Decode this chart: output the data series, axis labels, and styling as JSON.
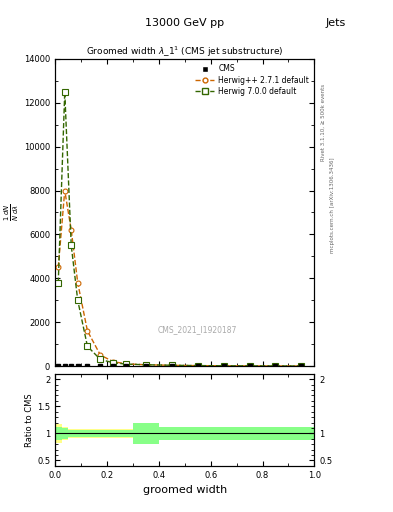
{
  "title": "13000 GeV pp",
  "title_right": "Jets",
  "plot_title": "Groomed width $\\lambda\\_1^1$ (CMS jet substructure)",
  "xlabel": "groomed width",
  "ylabel_ratio": "Ratio to CMS",
  "watermark": "CMS_2021_I1920187",
  "right_label_top": "Rivet 3.1.10, ≥ 500k events",
  "right_label_bot": "mcplots.cern.ch [arXiv:1306.3436]",
  "herwig271_x": [
    0.0125,
    0.0375,
    0.0625,
    0.0875,
    0.125,
    0.175,
    0.225,
    0.275,
    0.35,
    0.45,
    0.55,
    0.65,
    0.75,
    0.85,
    0.95
  ],
  "herwig271_y": [
    4500,
    8000,
    6200,
    3800,
    1600,
    500,
    200,
    100,
    60,
    35,
    20,
    12,
    8,
    5,
    3
  ],
  "herwig700_x": [
    0.0125,
    0.0375,
    0.0625,
    0.0875,
    0.125,
    0.175,
    0.225,
    0.275,
    0.35,
    0.45,
    0.55,
    0.65,
    0.75,
    0.85,
    0.95
  ],
  "herwig700_y": [
    3800,
    12500,
    5500,
    3000,
    900,
    300,
    150,
    90,
    60,
    38,
    22,
    14,
    10,
    6,
    3
  ],
  "cms_x": [
    0.0125,
    0.0375,
    0.0625,
    0.0875,
    0.125,
    0.175,
    0.225,
    0.275,
    0.35,
    0.45,
    0.55,
    0.65,
    0.75,
    0.85,
    0.95
  ],
  "cms_y": [
    0,
    0,
    0,
    0,
    0,
    0,
    0,
    0,
    0,
    0,
    0,
    0,
    0,
    0,
    0
  ],
  "bin_edges": [
    0.0,
    0.025,
    0.05,
    0.075,
    0.1,
    0.15,
    0.2,
    0.25,
    0.3,
    0.4,
    0.5,
    0.6,
    0.7,
    0.8,
    0.9,
    1.0
  ],
  "ratio_herwig271_y": [
    1.0,
    1.0,
    1.0,
    1.0,
    1.0,
    1.0,
    1.0,
    1.0,
    1.0,
    1.0,
    1.0,
    1.0,
    1.0,
    1.0,
    1.0
  ],
  "ratio_herwig271_err_hi": [
    0.18,
    0.12,
    0.08,
    0.08,
    0.08,
    0.08,
    0.08,
    0.08,
    0.08,
    0.08,
    0.08,
    0.08,
    0.08,
    0.08,
    0.08
  ],
  "ratio_herwig271_err_lo": [
    0.18,
    0.12,
    0.08,
    0.08,
    0.08,
    0.08,
    0.08,
    0.08,
    0.08,
    0.08,
    0.08,
    0.08,
    0.08,
    0.08,
    0.08
  ],
  "ratio_herwig700_y": [
    1.0,
    1.0,
    1.0,
    1.0,
    1.0,
    1.0,
    1.0,
    1.0,
    1.0,
    1.0,
    1.0,
    1.0,
    1.0,
    1.0,
    1.0
  ],
  "ratio_herwig700_err_hi": [
    0.12,
    0.1,
    0.06,
    0.06,
    0.06,
    0.06,
    0.06,
    0.06,
    0.2,
    0.12,
    0.12,
    0.12,
    0.12,
    0.12,
    0.12
  ],
  "ratio_herwig700_err_lo": [
    0.12,
    0.1,
    0.06,
    0.06,
    0.06,
    0.06,
    0.06,
    0.06,
    0.2,
    0.12,
    0.12,
    0.12,
    0.12,
    0.12,
    0.12
  ],
  "color_herwig271": "#cc6600",
  "color_herwig700": "#336600",
  "color_cms": "#000000",
  "color_ratio_herwig271_fill": "#ffff88",
  "color_ratio_herwig700_fill": "#88ff88",
  "ylim_main": [
    0,
    14000
  ],
  "ylim_ratio": [
    0.4,
    2.1
  ],
  "xlim": [
    0.0,
    1.0
  ],
  "yticks_main": [
    0,
    2000,
    4000,
    6000,
    8000,
    10000,
    12000,
    14000
  ],
  "ytick_labels_main": [
    "0",
    "2000",
    "4000",
    "6000",
    "8000",
    "10000",
    "12000",
    "14000"
  ]
}
